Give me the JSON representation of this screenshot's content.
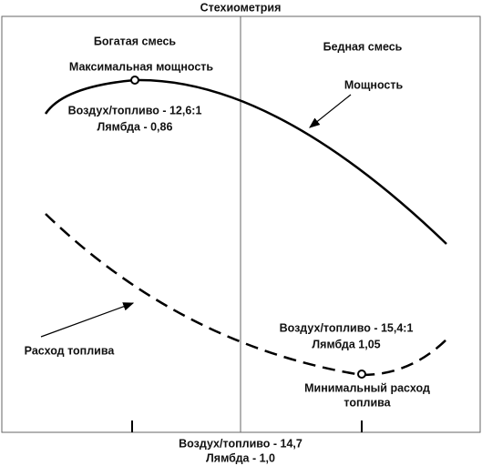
{
  "title": "Стехиометрия",
  "zones": {
    "rich": "Богатая смесь",
    "lean": "Бедная смесь"
  },
  "power": {
    "label": "Мощность",
    "peak_label": "Максимальная мощность",
    "peak_ratio": "Воздух/топливо - 12,6:1",
    "peak_lambda": "Лямбда - 0,86"
  },
  "fuel": {
    "label": "Расход топлива",
    "min_label_1": "Минимальный расход",
    "min_label_2": "топлива",
    "min_ratio": "Воздух/топливо - 15,4:1",
    "min_lambda": "Лямбда 1,05"
  },
  "stoich": {
    "ratio": "Воздух/топливо - 14,7",
    "lambda": "Лямбда - 1,0"
  }
}
